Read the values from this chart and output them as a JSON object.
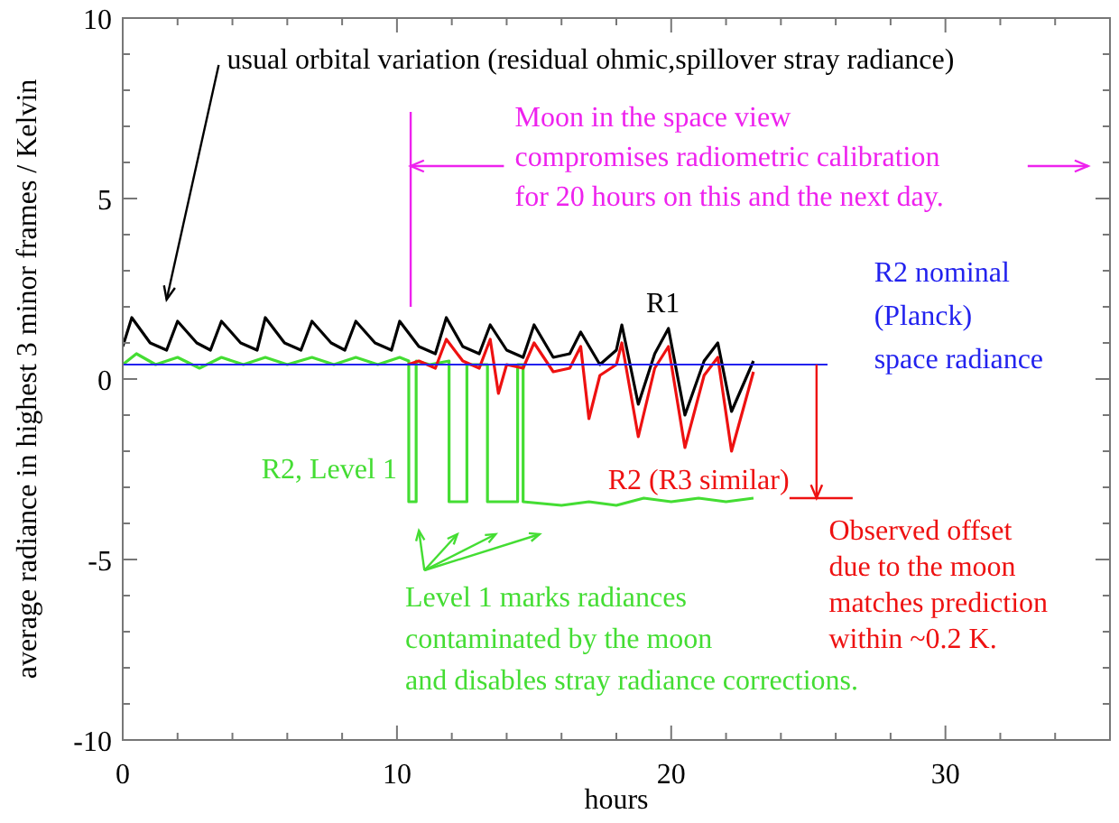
{
  "chart_data": {
    "type": "line",
    "xlabel": "hours",
    "ylabel": "average radiance in highest 3 minor frames / Kelvin",
    "xlim": [
      0,
      36
    ],
    "ylim": [
      -10,
      10
    ],
    "xticks": [
      0,
      {
        "value": 2,
        "label": null
      },
      {
        "value": 4,
        "label": null
      },
      {
        "value": 6,
        "label": null
      },
      {
        "value": 8,
        "label": null
      },
      10,
      {
        "value": 12,
        "label": null
      },
      {
        "value": 14,
        "label": null
      },
      {
        "value": 16,
        "label": null
      },
      {
        "value": 18,
        "label": null
      },
      20,
      {
        "value": 22,
        "label": null
      },
      {
        "value": 24,
        "label": null
      },
      {
        "value": 26,
        "label": null
      },
      {
        "value": 28,
        "label": null
      },
      30,
      {
        "value": 32,
        "label": null
      },
      {
        "value": 34,
        "label": null
      }
    ],
    "yticks": [
      -10,
      {
        "value": -9,
        "label": null
      },
      {
        "value": -8,
        "label": null
      },
      {
        "value": -7,
        "label": null
      },
      {
        "value": -6,
        "label": null
      },
      -5,
      {
        "value": -4,
        "label": null
      },
      {
        "value": -3,
        "label": null
      },
      {
        "value": -2,
        "label": null
      },
      {
        "value": -1,
        "label": null
      },
      0,
      {
        "value": 1,
        "label": null
      },
      {
        "value": 2,
        "label": null
      },
      {
        "value": 3,
        "label": null
      },
      {
        "value": 4,
        "label": null
      },
      5,
      {
        "value": 6,
        "label": null
      },
      {
        "value": 7,
        "label": null
      },
      {
        "value": 8,
        "label": null
      },
      {
        "value": 9,
        "label": null
      },
      10
    ],
    "series": [
      {
        "name": "R2, Level 1",
        "color": "#44dd33",
        "x": [
          0,
          0.5,
          1.2,
          2.0,
          2.8,
          3.6,
          4.4,
          5.2,
          6.0,
          6.9,
          7.7,
          8.5,
          9.3,
          10.1,
          10.43,
          10.43,
          10.7,
          10.7,
          11.2,
          11.9,
          11.9,
          12.55,
          12.55,
          13.3,
          13.3,
          14.4,
          14.4,
          14.6,
          14.6,
          16,
          17,
          18,
          19,
          20,
          21,
          22,
          23
        ],
        "values": [
          0.4,
          0.7,
          0.4,
          0.6,
          0.3,
          0.6,
          0.4,
          0.6,
          0.4,
          0.6,
          0.4,
          0.6,
          0.4,
          0.6,
          0.5,
          -3.4,
          -3.4,
          0.5,
          0.4,
          0.5,
          -3.4,
          -3.4,
          0.4,
          0.4,
          -3.4,
          -3.4,
          0.4,
          0.4,
          -3.4,
          -3.5,
          -3.4,
          -3.5,
          -3.3,
          -3.4,
          -3.3,
          -3.4,
          -3.3
        ]
      },
      {
        "name": "R1",
        "color": "#000000",
        "x": [
          0,
          0.33,
          1.0,
          1.6,
          2.0,
          2.7,
          3.2,
          3.6,
          4.3,
          4.9,
          5.2,
          5.9,
          6.5,
          6.9,
          7.6,
          8.1,
          8.5,
          9.2,
          9.8,
          10.1,
          10.8,
          11.4,
          11.8,
          12.4,
          13.0,
          13.4,
          14.0,
          14.6,
          15.0,
          15.7,
          16.3,
          16.7,
          17.4,
          18.0,
          18.2,
          18.8,
          19.4,
          19.9,
          20.5,
          21.2,
          21.7,
          22.2,
          23.0
        ],
        "values": [
          0.9,
          1.7,
          1.0,
          0.8,
          1.6,
          1.0,
          0.8,
          1.6,
          1.0,
          0.8,
          1.7,
          1.0,
          0.8,
          1.6,
          1.0,
          0.8,
          1.6,
          1.0,
          0.8,
          1.6,
          0.9,
          0.7,
          1.7,
          0.9,
          0.7,
          1.5,
          0.8,
          0.6,
          1.5,
          0.6,
          0.7,
          1.3,
          0.4,
          0.8,
          1.5,
          -0.7,
          0.7,
          1.4,
          -1.0,
          0.5,
          1.0,
          -0.9,
          0.5
        ]
      },
      {
        "name": "R2 (R3 similar)",
        "color": "#ee1111",
        "x": [
          10.4,
          10.8,
          11.4,
          11.8,
          12.4,
          13.0,
          13.4,
          13.7,
          14.0,
          14.6,
          15.0,
          15.7,
          16.3,
          16.7,
          17.0,
          17.4,
          18.0,
          18.2,
          18.8,
          19.4,
          19.9,
          20.5,
          21.2,
          21.7,
          22.2,
          23.0
        ],
        "values": [
          0.4,
          0.5,
          0.3,
          1.1,
          0.5,
          0.3,
          1.1,
          -0.4,
          0.4,
          0.3,
          1.0,
          0.2,
          0.3,
          0.9,
          -1.1,
          0.1,
          0.4,
          1.0,
          -1.6,
          0.3,
          0.9,
          -1.9,
          0.1,
          0.6,
          -2.0,
          0.2
        ]
      }
    ],
    "ref_lines": [
      {
        "axis": "y",
        "value": 0.4,
        "label": "R2 nominal\n(Planck)\nspace radiance",
        "color": "#2222ee"
      },
      {
        "axis": "x",
        "value": 10.5,
        "color": "#ee22ee"
      }
    ],
    "annotations": [
      "usual orbital variation (residual ohmic,spillover stray radiance)",
      {
        "text": "Moon in the space view\ncompromises radiometric calibration\nfor 20 hours on this and the next day.",
        "x": 10.5,
        "y": 5.9
      },
      {
        "text": "Observed offset\ndue to the moon\nmatches prediction\nwithin ~0.2 K.",
        "x": 25.3,
        "y": 0.4
      },
      "Level 1 marks radiances\ncontaminated by the moon\nand disables stray radiance corrections."
    ]
  }
}
